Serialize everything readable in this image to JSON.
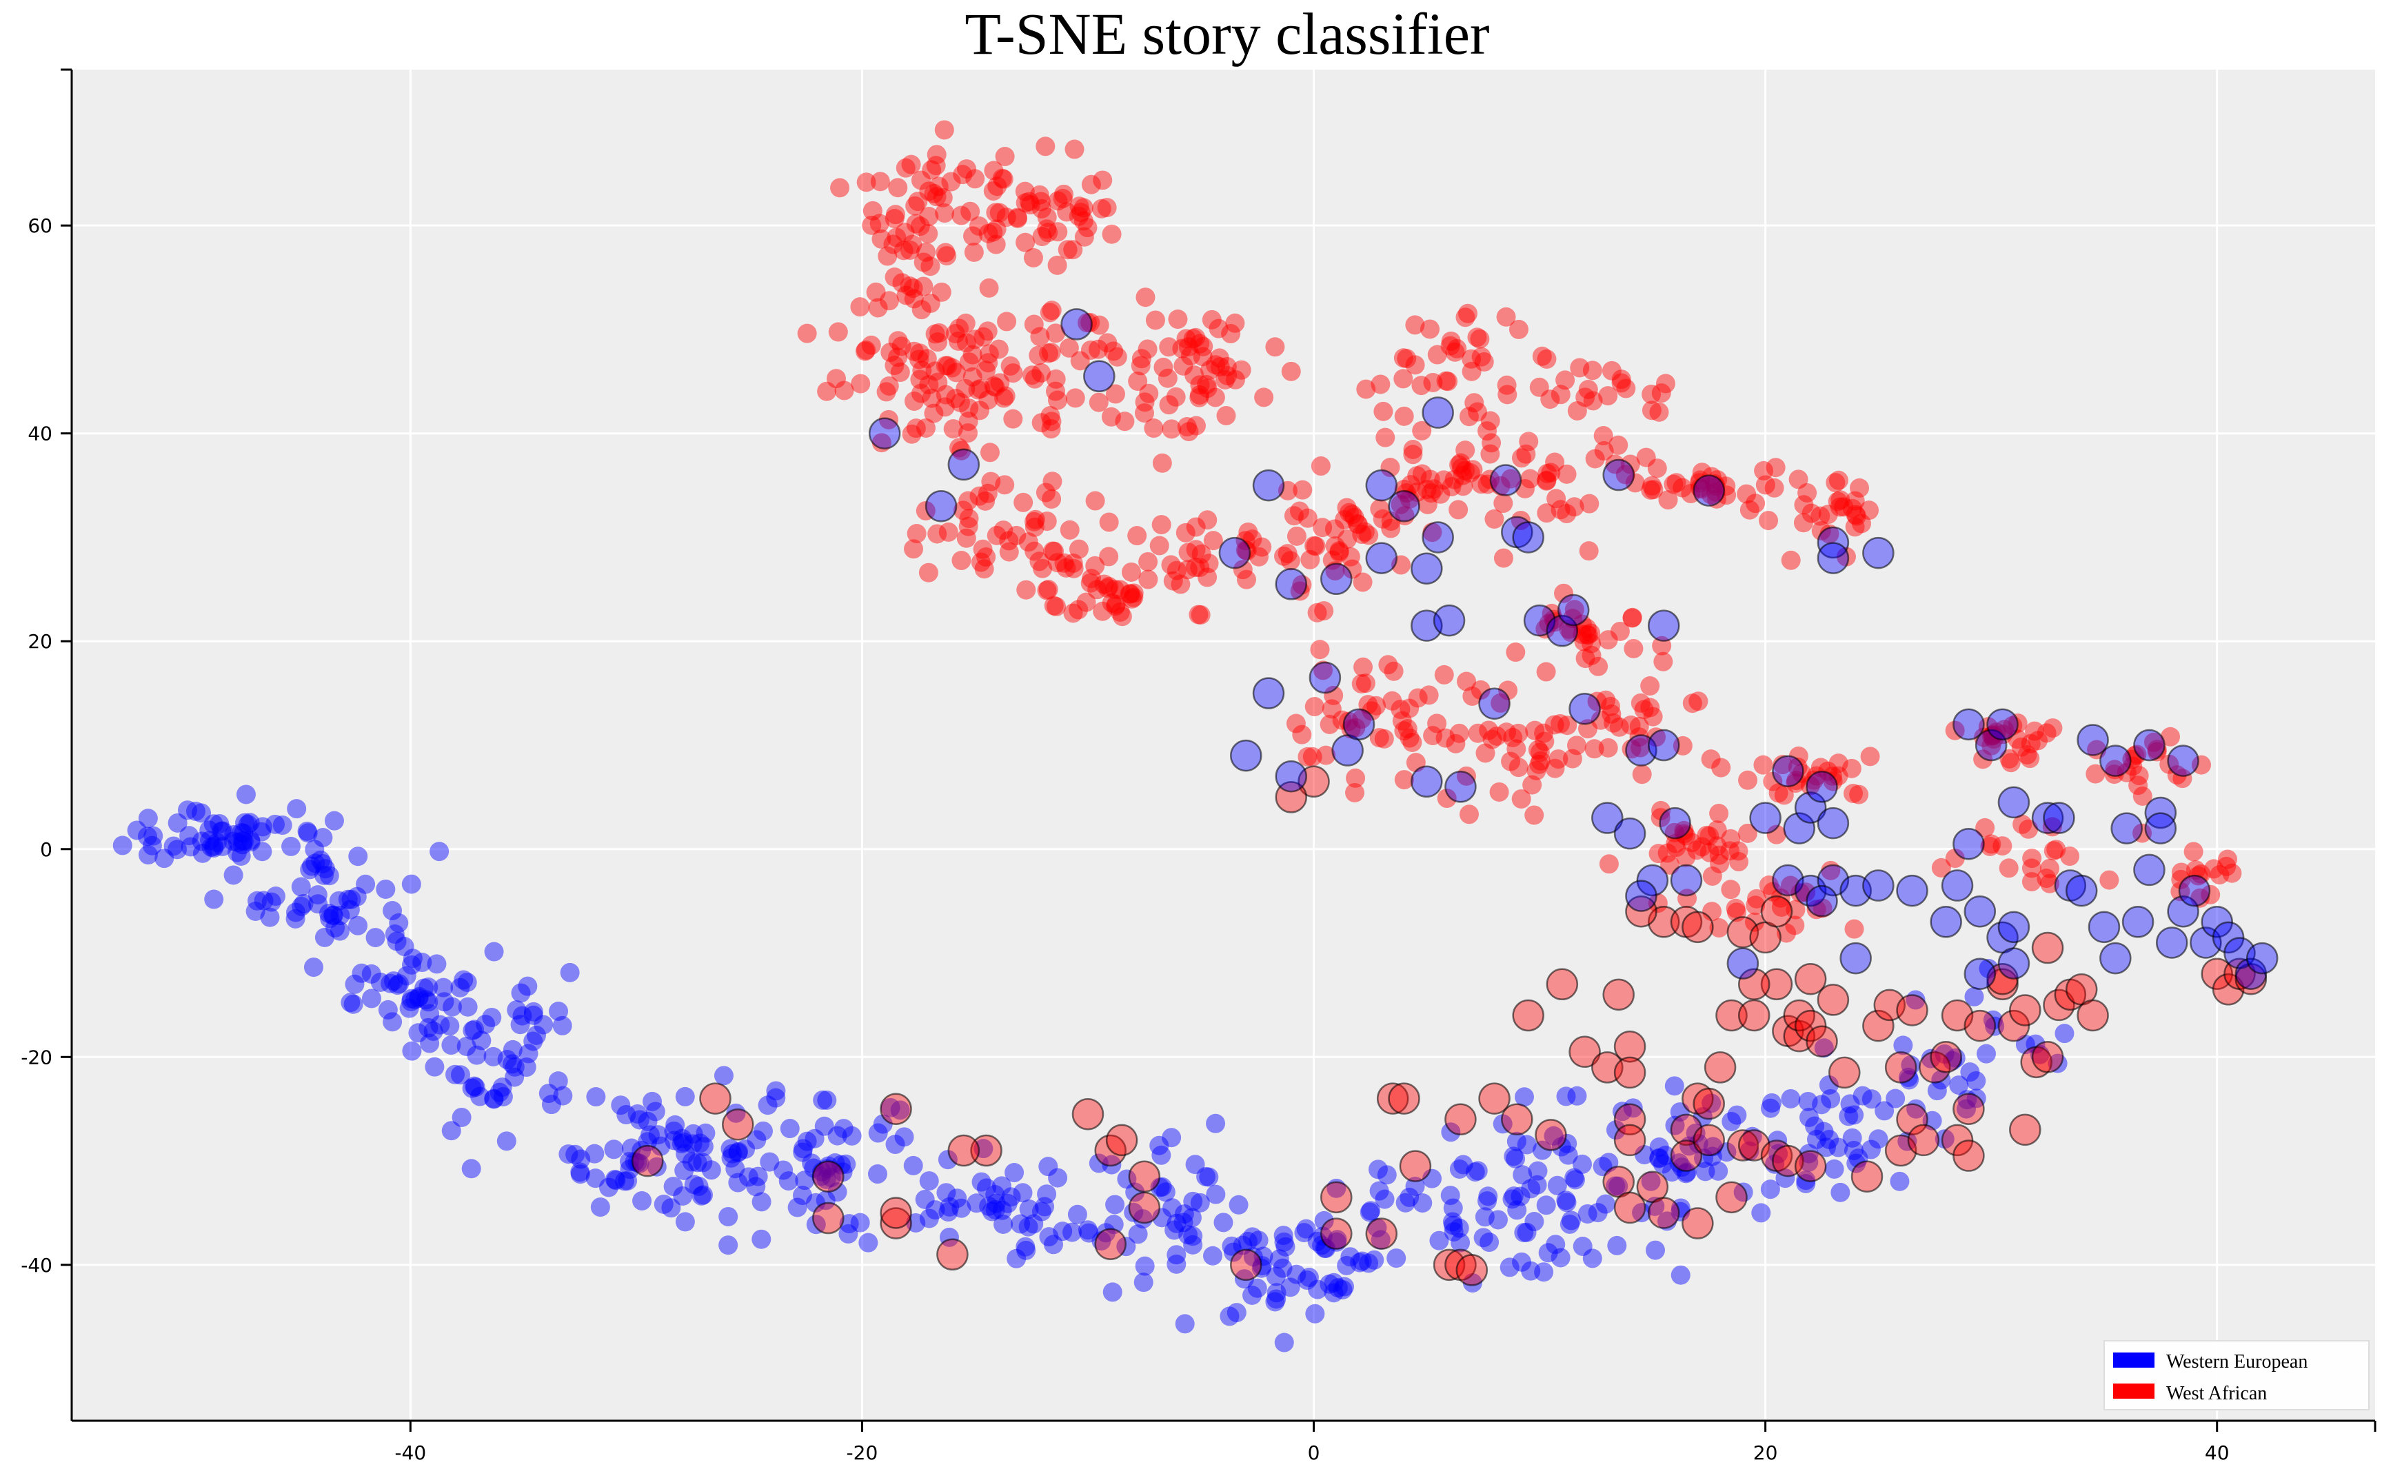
{
  "chart_data": {
    "type": "scatter",
    "title": "T-SNE story classifier",
    "xlabel": "",
    "ylabel": "",
    "xlim": [
      -55,
      47
    ],
    "ylim": [
      -55,
      75
    ],
    "xticks": [
      -40,
      -20,
      0,
      20,
      40
    ],
    "yticks": [
      -40,
      -20,
      0,
      20,
      40,
      60
    ],
    "grid": true,
    "legend_position": "bottom-right",
    "colors": {
      "western_european": "#0000ff",
      "west_african": "#ff0000",
      "background": "#eeeeee",
      "grid": "#ffffff"
    },
    "series": [
      {
        "name": "Western European",
        "key": "western_european",
        "marker": "small",
        "regions": [
          {
            "cx": -48,
            "cy": 1.5,
            "rx": 4,
            "ry": 2.5,
            "n": 55
          },
          {
            "cx": -43.5,
            "cy": -5,
            "rx": 3.5,
            "ry": 5,
            "n": 50
          },
          {
            "cx": -40,
            "cy": -14,
            "rx": 3,
            "ry": 4,
            "n": 35
          },
          {
            "cx": -36,
            "cy": -20,
            "rx": 3,
            "ry": 7,
            "n": 60
          },
          {
            "cx": -30,
            "cy": -29,
            "rx": 3,
            "ry": 5,
            "n": 45
          },
          {
            "cx": -26,
            "cy": -30,
            "rx": 3,
            "ry": 6,
            "n": 40
          },
          {
            "cx": -21,
            "cy": -31,
            "rx": 3,
            "ry": 6,
            "n": 45
          },
          {
            "cx": -14,
            "cy": -35,
            "rx": 4,
            "ry": 4,
            "n": 40
          },
          {
            "cx": -7,
            "cy": -36,
            "rx": 4,
            "ry": 6,
            "n": 45
          },
          {
            "cx": -1,
            "cy": -40,
            "rx": 4,
            "ry": 6,
            "n": 55
          },
          {
            "cx": 5,
            "cy": -36,
            "rx": 4,
            "ry": 6,
            "n": 40
          },
          {
            "cx": 11,
            "cy": -33,
            "rx": 4,
            "ry": 7,
            "n": 50
          },
          {
            "cx": 17,
            "cy": -30,
            "rx": 4,
            "ry": 6,
            "n": 40
          },
          {
            "cx": 23,
            "cy": -27,
            "rx": 4,
            "ry": 5,
            "n": 40
          },
          {
            "cx": 29,
            "cy": -20,
            "rx": 4,
            "ry": 6,
            "n": 30
          }
        ],
        "highlighted_points": [
          [
            -10.5,
            50.5
          ],
          [
            -9.5,
            45.5
          ],
          [
            -19,
            40
          ],
          [
            -15.5,
            37
          ],
          [
            -16.5,
            33
          ],
          [
            -3.5,
            28.5
          ],
          [
            -2,
            35
          ],
          [
            -1,
            25.5
          ],
          [
            1,
            26
          ],
          [
            3,
            28
          ],
          [
            3,
            35
          ],
          [
            4,
            33
          ],
          [
            5,
            27
          ],
          [
            5.5,
            30
          ],
          [
            5.5,
            42
          ],
          [
            5,
            21.5
          ],
          [
            6,
            22
          ],
          [
            8.5,
            35.5
          ],
          [
            9,
            30.5
          ],
          [
            9.5,
            30
          ],
          [
            10,
            22
          ],
          [
            11,
            21
          ],
          [
            11.5,
            23
          ],
          [
            13.5,
            36
          ],
          [
            15.5,
            21.5
          ],
          [
            17.5,
            34.5
          ],
          [
            23,
            29.5
          ],
          [
            23,
            28
          ],
          [
            25,
            28.5
          ],
          [
            -2,
            15
          ],
          [
            0.5,
            16.5
          ],
          [
            1.5,
            9.5
          ],
          [
            2,
            12
          ],
          [
            -3,
            9
          ],
          [
            -1,
            7
          ],
          [
            5,
            6.5
          ],
          [
            6.5,
            6
          ],
          [
            8,
            14
          ],
          [
            12,
            13.5
          ],
          [
            14.5,
            9.5
          ],
          [
            15.5,
            10
          ],
          [
            13,
            3
          ],
          [
            14,
            1.5
          ],
          [
            15,
            -3
          ],
          [
            16,
            2.5
          ],
          [
            16.5,
            -3
          ],
          [
            14.5,
            -4.5
          ],
          [
            20,
            3
          ],
          [
            21,
            7.5
          ],
          [
            21.5,
            2
          ],
          [
            22,
            4
          ],
          [
            22.5,
            6
          ],
          [
            23,
            2.5
          ],
          [
            21,
            -3
          ],
          [
            22,
            -4
          ],
          [
            23,
            -3
          ],
          [
            24,
            -4
          ],
          [
            25,
            -3.5
          ],
          [
            26.5,
            -4
          ],
          [
            28,
            -7
          ],
          [
            28.5,
            -3.5
          ],
          [
            29,
            0.5
          ],
          [
            29,
            12
          ],
          [
            30,
            10
          ],
          [
            30.5,
            12
          ],
          [
            31,
            4.5
          ],
          [
            29.5,
            -6
          ],
          [
            30.5,
            -8.5
          ],
          [
            31,
            -7.5
          ],
          [
            32.5,
            3
          ],
          [
            33.5,
            -3.5
          ],
          [
            34,
            -4
          ],
          [
            34.5,
            10.5
          ],
          [
            35,
            -7.5
          ],
          [
            35.5,
            8.5
          ],
          [
            36,
            2
          ],
          [
            36.5,
            -7
          ],
          [
            37,
            -2
          ],
          [
            37,
            10
          ],
          [
            37.5,
            3.5
          ],
          [
            37.5,
            2
          ],
          [
            38,
            -9
          ],
          [
            38.5,
            8.5
          ],
          [
            38.5,
            -6
          ],
          [
            39,
            -4
          ],
          [
            39.5,
            -9
          ],
          [
            40,
            -7
          ],
          [
            40.5,
            -8.5
          ],
          [
            41,
            -10
          ],
          [
            41.5,
            -12
          ],
          [
            42,
            -10.5
          ],
          [
            29.5,
            -12
          ],
          [
            31,
            -11
          ],
          [
            24,
            -10.5
          ],
          [
            19,
            -11
          ],
          [
            35.5,
            -10.5
          ],
          [
            33,
            3
          ],
          [
            22.5,
            -5
          ]
        ]
      },
      {
        "name": "West African",
        "key": "west_african",
        "marker": "small",
        "regions": [
          {
            "cx": -18,
            "cy": 58,
            "rx": 3,
            "ry": 7,
            "n": 40
          },
          {
            "cx": -14.5,
            "cy": 62,
            "rx": 3.5,
            "ry": 5,
            "n": 40
          },
          {
            "cx": -17.5,
            "cy": 46,
            "rx": 3.5,
            "ry": 7,
            "n": 55
          },
          {
            "cx": -14,
            "cy": 45,
            "rx": 3,
            "ry": 6,
            "n": 40
          },
          {
            "cx": -11,
            "cy": 62,
            "rx": 3.5,
            "ry": 4,
            "n": 30
          },
          {
            "cx": -9,
            "cy": 47,
            "rx": 4,
            "ry": 6,
            "n": 45
          },
          {
            "cx": -5,
            "cy": 45,
            "rx": 3,
            "ry": 6,
            "n": 35
          },
          {
            "cx": -14,
            "cy": 31,
            "rx": 4,
            "ry": 4,
            "n": 40
          },
          {
            "cx": -10,
            "cy": 25,
            "rx": 3.5,
            "ry": 4,
            "n": 40
          },
          {
            "cx": -5,
            "cy": 28,
            "rx": 3,
            "ry": 4,
            "n": 30
          },
          {
            "cx": 0,
            "cy": 30,
            "rx": 4,
            "ry": 5,
            "n": 40
          },
          {
            "cx": 5,
            "cy": 36,
            "rx": 4,
            "ry": 7,
            "n": 45
          },
          {
            "cx": 6,
            "cy": 47,
            "rx": 3,
            "ry": 4,
            "n": 30
          },
          {
            "cx": 11,
            "cy": 36,
            "rx": 4,
            "ry": 5,
            "n": 40
          },
          {
            "cx": 13,
            "cy": 44,
            "rx": 3,
            "ry": 2,
            "n": 20
          },
          {
            "cx": 17.5,
            "cy": 35,
            "rx": 3,
            "ry": 2,
            "n": 25
          },
          {
            "cx": 22.5,
            "cy": 32,
            "rx": 2.5,
            "ry": 3,
            "n": 30
          },
          {
            "cx": 12,
            "cy": 20,
            "rx": 3,
            "ry": 3,
            "n": 30
          },
          {
            "cx": 3,
            "cy": 12,
            "rx": 5,
            "ry": 5,
            "n": 55
          },
          {
            "cx": 10,
            "cy": 10,
            "rx": 3.5,
            "ry": 5,
            "n": 35
          },
          {
            "cx": 15,
            "cy": 12,
            "rx": 2.5,
            "ry": 3,
            "n": 20
          },
          {
            "cx": 22,
            "cy": 7,
            "rx": 3,
            "ry": 2,
            "n": 25
          },
          {
            "cx": 17,
            "cy": 1,
            "rx": 3,
            "ry": 2.5,
            "n": 30
          },
          {
            "cx": 31,
            "cy": 10,
            "rx": 2.5,
            "ry": 3,
            "n": 25
          },
          {
            "cx": 37,
            "cy": 8,
            "rx": 2.5,
            "ry": 3,
            "n": 20
          },
          {
            "cx": 32,
            "cy": 0,
            "rx": 3,
            "ry": 3,
            "n": 20
          },
          {
            "cx": 39,
            "cy": -2,
            "rx": 2,
            "ry": 3,
            "n": 15
          },
          {
            "cx": 20,
            "cy": -5,
            "rx": 4,
            "ry": 3,
            "n": 25
          }
        ],
        "highlighted_points": [
          [
            -10,
            -25.5
          ],
          [
            -14.5,
            -29
          ],
          [
            -15.5,
            -29
          ],
          [
            -9,
            -29
          ],
          [
            -8.5,
            -28
          ],
          [
            -7.5,
            -31.5
          ],
          [
            -7.5,
            -34.5
          ],
          [
            -9,
            -38
          ],
          [
            -3,
            -40
          ],
          [
            -21.5,
            -31.5
          ],
          [
            -21.5,
            -35.5
          ],
          [
            -18.5,
            -36
          ],
          [
            -18.5,
            -35
          ],
          [
            -16,
            -39
          ],
          [
            -18.5,
            -25
          ],
          [
            -26.5,
            -24
          ],
          [
            -25.5,
            -26.5
          ],
          [
            -29.5,
            -30
          ],
          [
            1,
            -33.5
          ],
          [
            1,
            -37
          ],
          [
            3,
            -37
          ],
          [
            3.5,
            -24
          ],
          [
            4,
            -24
          ],
          [
            4.5,
            -30.5
          ],
          [
            6,
            -40
          ],
          [
            6.5,
            -40
          ],
          [
            7,
            -40.5
          ],
          [
            6.5,
            -26
          ],
          [
            8,
            -24
          ],
          [
            9,
            -26
          ],
          [
            9.5,
            -16
          ],
          [
            10.5,
            -27.5
          ],
          [
            11,
            -13
          ],
          [
            12,
            -19.5
          ],
          [
            13,
            -21
          ],
          [
            13.5,
            -14
          ],
          [
            13.5,
            -32
          ],
          [
            14,
            -19
          ],
          [
            14,
            -21.5
          ],
          [
            14,
            -26
          ],
          [
            14,
            -28
          ],
          [
            14,
            -34.5
          ],
          [
            15,
            -32.5
          ],
          [
            15.5,
            -35
          ],
          [
            16.5,
            -27
          ],
          [
            16.5,
            -29.5
          ],
          [
            17,
            -24
          ],
          [
            17.5,
            -24.5
          ],
          [
            17,
            -36
          ],
          [
            17.5,
            -28
          ],
          [
            18,
            -21
          ],
          [
            18.5,
            -16
          ],
          [
            18.5,
            -33.5
          ],
          [
            19,
            -28.5
          ],
          [
            19.5,
            -16
          ],
          [
            19.5,
            -28.5
          ],
          [
            20.5,
            -29.5
          ],
          [
            20.5,
            -13
          ],
          [
            21,
            -30
          ],
          [
            21,
            -17.5
          ],
          [
            21.5,
            -18
          ],
          [
            21.5,
            -16
          ],
          [
            22,
            -17
          ],
          [
            22,
            -12.5
          ],
          [
            22,
            -30.5
          ],
          [
            22.5,
            -18.5
          ],
          [
            23.5,
            -21.5
          ],
          [
            24.5,
            -31.5
          ],
          [
            25,
            -17
          ],
          [
            25.5,
            -15
          ],
          [
            26,
            -21
          ],
          [
            26,
            -29
          ],
          [
            26.5,
            -26
          ],
          [
            27,
            -28
          ],
          [
            27.5,
            -21
          ],
          [
            28,
            -20
          ],
          [
            28.5,
            -16
          ],
          [
            28.5,
            -28
          ],
          [
            29,
            -25
          ],
          [
            29,
            -29.5
          ],
          [
            29.5,
            -17
          ],
          [
            30.5,
            -13
          ],
          [
            31,
            -17
          ],
          [
            30.5,
            -12.5
          ],
          [
            31.5,
            -27
          ],
          [
            32,
            -20.5
          ],
          [
            32.5,
            -20
          ],
          [
            32.5,
            -9.5
          ],
          [
            33,
            -15
          ],
          [
            33.5,
            -14
          ],
          [
            34,
            -13.5
          ],
          [
            34.5,
            -16
          ],
          [
            40,
            -12
          ],
          [
            40.5,
            -13.5
          ],
          [
            41,
            -12
          ],
          [
            41.5,
            -12.5
          ],
          [
            15.5,
            -7
          ],
          [
            16.5,
            -7
          ],
          [
            17,
            -7.5
          ],
          [
            19,
            -8
          ],
          [
            20,
            -8.5
          ],
          [
            20.5,
            -6
          ],
          [
            14.5,
            -6
          ],
          [
            19.5,
            -13
          ],
          [
            23,
            -14.5
          ],
          [
            26.5,
            -15.5
          ],
          [
            31.5,
            -15.5
          ],
          [
            0,
            6.5
          ],
          [
            -1,
            5
          ]
        ]
      }
    ]
  },
  "legend": [
    {
      "label": "Western European",
      "color": "#0000ff"
    },
    {
      "label": "West African",
      "color": "#ff0000"
    }
  ]
}
